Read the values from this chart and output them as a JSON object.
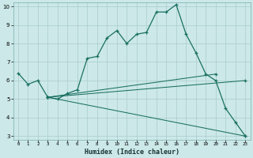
{
  "xlabel": "Humidex (Indice chaleur)",
  "background_color": "#cce8e8",
  "grid_color": "#aacccc",
  "line_color": "#1a7060",
  "xlim": [
    -0.5,
    23.5
  ],
  "ylim": [
    2.8,
    10.2
  ],
  "yticks": [
    3,
    4,
    5,
    6,
    7,
    8,
    9,
    10
  ],
  "xticks": [
    0,
    1,
    2,
    3,
    4,
    5,
    6,
    7,
    8,
    9,
    10,
    11,
    12,
    13,
    14,
    15,
    16,
    17,
    18,
    19,
    20,
    21,
    22,
    23
  ],
  "series": [
    [
      0,
      6.4
    ],
    [
      1,
      5.8
    ],
    [
      2,
      6.0
    ],
    [
      3,
      5.1
    ],
    [
      4,
      5.0
    ],
    [
      5,
      5.3
    ],
    [
      6,
      5.5
    ],
    [
      7,
      7.2
    ],
    [
      8,
      7.3
    ],
    [
      9,
      8.3
    ],
    [
      10,
      8.7
    ],
    [
      11,
      8.0
    ],
    [
      12,
      8.5
    ],
    [
      13,
      8.6
    ],
    [
      14,
      9.7
    ],
    [
      15,
      9.7
    ],
    [
      16,
      10.1
    ],
    [
      17,
      8.5
    ],
    [
      18,
      7.5
    ],
    [
      19,
      6.35
    ],
    [
      20,
      6.0
    ],
    [
      21,
      4.5
    ],
    [
      22,
      3.75
    ],
    [
      23,
      3.0
    ]
  ],
  "diag_series": [
    {
      "x": [
        3,
        23
      ],
      "y": [
        5.1,
        3.0
      ]
    },
    {
      "x": [
        3,
        23
      ],
      "y": [
        5.1,
        6.0
      ]
    },
    {
      "x": [
        3,
        20
      ],
      "y": [
        5.1,
        6.35
      ]
    }
  ]
}
